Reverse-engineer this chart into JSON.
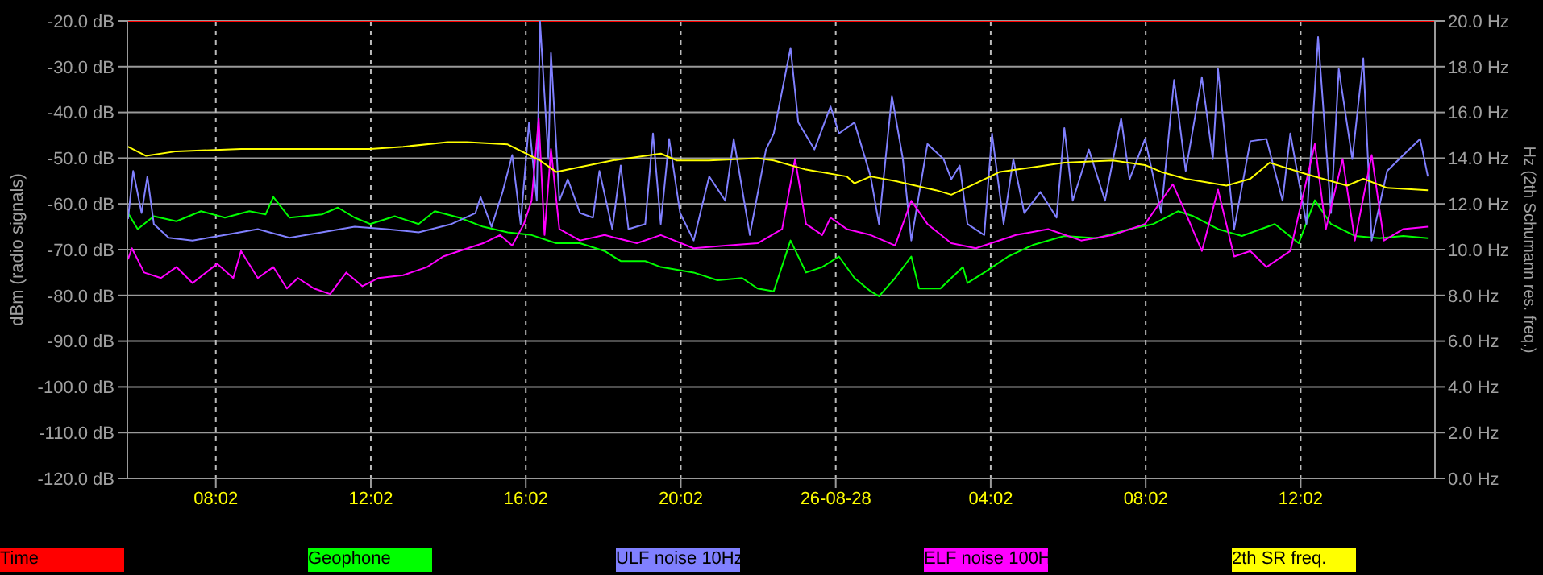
{
  "chart_data": {
    "type": "line",
    "ylabel": "dBm (radio signals)",
    "y2label": "Hz (2th Schumann res. freq.)",
    "xlim": [
      "--08-25T05:45",
      "--08-26T15:30"
    ],
    "xticks": [
      {
        "value": "--08-25T08:02",
        "label": "08:02"
      },
      {
        "value": "--08-25T12:02",
        "label": "12:02"
      },
      {
        "value": "--08-25T16:02",
        "label": "16:02"
      },
      {
        "value": "--08-25T20:02",
        "label": "20:02"
      },
      {
        "value": "--08-26T00:02",
        "label": "26-08-28"
      },
      {
        "value": "--08-26T04:02",
        "label": "04:02"
      },
      {
        "value": "--08-26T08:02",
        "label": "08:02"
      },
      {
        "value": "--08-26T12:02",
        "label": "12:02"
      }
    ],
    "ylim": [
      -120,
      -20
    ],
    "yticks": [
      {
        "value": -120,
        "label": "-120.0 dB"
      },
      {
        "value": -110,
        "label": "-110.0 dB"
      },
      {
        "value": -100,
        "label": "-100.0 dB"
      },
      {
        "value": -90,
        "label": "-90.0 dB"
      },
      {
        "value": -80,
        "label": "-80.0 dB"
      },
      {
        "value": -70,
        "label": "-70.0 dB"
      },
      {
        "value": -60,
        "label": "-60.0 dB"
      },
      {
        "value": -50,
        "label": "-50.0 dB"
      },
      {
        "value": -40,
        "label": "-40.0 dB"
      },
      {
        "value": -30,
        "label": "-30.0 dB"
      },
      {
        "value": -20,
        "label": "-20.0 dB"
      }
    ],
    "y2lim": [
      0,
      20
    ],
    "y2ticks": [
      {
        "value": 0,
        "label": "0.0 Hz"
      },
      {
        "value": 2,
        "label": "2.0 Hz"
      },
      {
        "value": 4,
        "label": "4.0 Hz"
      },
      {
        "value": 6,
        "label": "6.0 Hz"
      },
      {
        "value": 8,
        "label": "8.0 Hz"
      },
      {
        "value": 10,
        "label": "10.0 Hz"
      },
      {
        "value": 12,
        "label": "12.0 Hz"
      },
      {
        "value": 14,
        "label": "14.0 Hz"
      },
      {
        "value": 16,
        "label": "16.0 Hz"
      },
      {
        "value": 18,
        "label": "18.0 Hz"
      },
      {
        "value": 20,
        "label": "20.0 Hz"
      }
    ],
    "grid": true,
    "legend": "bottom",
    "series": [
      {
        "name": "Time",
        "color": "#ff0000",
        "x": [
          "--08-25T05:46",
          "--08-26T15:29"
        ],
        "values": [
          -20,
          -20
        ]
      },
      {
        "name": "Geophone",
        "color": "#00ff00",
        "x": [
          "--08-25T05:46",
          "--08-25T06:01",
          "--08-25T06:26",
          "--08-25T07:01",
          "--08-25T07:39",
          "--08-25T08:16",
          "--08-25T08:54",
          "--08-25T09:19",
          "--08-25T09:31",
          "--08-25T09:56",
          "--08-25T10:46",
          "--08-25T11:11",
          "--08-25T11:37",
          "--08-25T12:01",
          "--08-25T12:39",
          "--08-25T13:16",
          "--08-25T13:41",
          "--08-25T14:19",
          "--08-25T14:56",
          "--08-25T15:34",
          "--08-25T16:11",
          "--08-25T16:49",
          "--08-25T17:26",
          "--08-25T18:04",
          "--08-25T18:29",
          "--08-25T19:07",
          "--08-25T19:31",
          "--08-25T20:22",
          "--08-25T20:59",
          "--08-25T21:37",
          "--08-25T22:01",
          "--08-25T22:26",
          "--08-25T22:52",
          "--08-25T23:16",
          "--08-25T23:41",
          "--08-26T00:07",
          "--08-26T00:31",
          "--08-26T00:56",
          "--08-26T01:09",
          "--08-26T01:34",
          "--08-26T01:59",
          "--08-26T02:11",
          "--08-26T02:44",
          "--08-26T03:19",
          "--08-26T03:26",
          "--08-26T03:52",
          "--08-26T04:29",
          "--08-26T05:07",
          "--08-26T05:56",
          "--08-26T06:46",
          "--08-26T07:37",
          "--08-26T08:14",
          "--08-26T08:52",
          "--08-26T09:16",
          "--08-26T09:54",
          "--08-26T10:31",
          "--08-26T11:22",
          "--08-26T11:59",
          "--08-26T12:24",
          "--08-26T12:49",
          "--08-26T13:26",
          "--08-26T14:04",
          "--08-26T14:41",
          "--08-26T15:19"
        ],
        "values": [
          -62,
          -65.5,
          -62.7,
          -63.8,
          -61.6,
          -63,
          -61.6,
          -62.3,
          -58.5,
          -63,
          -62.3,
          -60.8,
          -63,
          -64.4,
          -62.7,
          -64.4,
          -61.6,
          -63,
          -65,
          -66.2,
          -66.8,
          -68.6,
          -68.6,
          -70.3,
          -72.5,
          -72.5,
          -73.8,
          -75,
          -76.7,
          -76.2,
          -78.5,
          -79.1,
          -68,
          -75,
          -73.8,
          -71.5,
          -76.2,
          -79.1,
          -80.2,
          -76.2,
          -71.5,
          -78.5,
          -78.5,
          -73.8,
          -77.3,
          -75,
          -71.5,
          -69,
          -67,
          -67.5,
          -65.5,
          -64.4,
          -61.6,
          -62.7,
          -65.5,
          -67,
          -64.4,
          -68.6,
          -59.2,
          -64.4,
          -67,
          -67.5,
          -67,
          -67.5
        ]
      },
      {
        "name": "ULF noise 10Hz",
        "color": "#8080ff",
        "x": [
          "--08-25T05:46",
          "--08-25T05:54",
          "--08-25T06:07",
          "--08-25T06:16",
          "--08-25T06:26",
          "--08-25T06:49",
          "--08-25T07:26",
          "--08-25T08:16",
          "--08-25T09:07",
          "--08-25T09:56",
          "--08-25T10:46",
          "--08-25T11:37",
          "--08-25T12:26",
          "--08-25T13:16",
          "--08-25T14:07",
          "--08-25T14:44",
          "--08-25T14:52",
          "--08-25T15:09",
          "--08-25T15:26",
          "--08-25T15:41",
          "--08-25T15:54",
          "--08-25T16:07",
          "--08-25T16:19",
          "--08-25T16:24",
          "--08-25T16:37",
          "--08-25T16:41",
          "--08-25T16:54",
          "--08-25T17:07",
          "--08-25T17:26",
          "--08-25T17:46",
          "--08-25T17:56",
          "--08-25T18:16",
          "--08-25T18:29",
          "--08-25T18:41",
          "--08-25T19:07",
          "--08-25T19:19",
          "--08-25T19:31",
          "--08-25T19:44",
          "--08-25T20:01",
          "--08-25T20:22",
          "--08-25T20:46",
          "--08-25T21:11",
          "--08-25T21:24",
          "--08-25T21:49",
          "--08-25T22:14",
          "--08-25T22:26",
          "--08-25T22:52",
          "--08-25T23:04",
          "--08-25T23:29",
          "--08-25T23:54",
          "--08-26T00:07",
          "--08-26T00:31",
          "--08-26T00:56",
          "--08-26T01:09",
          "--08-26T01:29",
          "--08-26T01:46",
          "--08-26T01:59",
          "--08-26T02:24",
          "--08-26T02:49",
          "--08-26T03:01",
          "--08-26T03:14",
          "--08-26T03:26",
          "--08-26T03:52",
          "--08-26T04:04",
          "--08-26T04:22",
          "--08-26T04:37",
          "--08-26T04:54",
          "--08-26T05:19",
          "--08-26T05:44",
          "--08-26T05:56",
          "--08-26T06:09",
          "--08-26T06:34",
          "--08-26T06:59",
          "--08-26T07:24",
          "--08-26T07:37",
          "--08-26T08:01",
          "--08-26T08:26",
          "--08-26T08:46",
          "--08-26T09:04",
          "--08-26T09:29",
          "--08-26T09:46",
          "--08-26T09:54",
          "--08-26T10:19",
          "--08-26T10:44",
          "--08-26T11:09",
          "--08-26T11:34",
          "--08-26T11:46",
          "--08-26T12:11",
          "--08-26T12:29",
          "--08-26T12:49",
          "--08-26T13:01",
          "--08-26T13:22",
          "--08-26T13:39",
          "--08-26T13:52",
          "--08-26T14:16",
          "--08-26T14:41",
          "--08-26T15:07",
          "--08-26T15:19"
        ],
        "values": [
          -63.3,
          -52.8,
          -62,
          -54,
          -64.4,
          -67.4,
          -68,
          -66.8,
          -65.5,
          -67.4,
          -66.2,
          -65,
          -65.5,
          -66.2,
          -64.4,
          -62,
          -58.5,
          -65,
          -57.4,
          -49.3,
          -64.4,
          -42.2,
          -59.3,
          -20,
          -50.2,
          -27,
          -59.3,
          -54.6,
          -62,
          -63,
          -52.8,
          -65.5,
          -51.6,
          -65.5,
          -64.4,
          -44.6,
          -64.4,
          -45.8,
          -62,
          -68,
          -54,
          -59.3,
          -45.8,
          -66.8,
          -48.1,
          -44.6,
          -25.9,
          -42.2,
          -48.1,
          -38.7,
          -44.6,
          -42.2,
          -54,
          -64.4,
          -36.4,
          -50.2,
          -68,
          -46.9,
          -50.2,
          -54.6,
          -51.6,
          -64.4,
          -66.8,
          -44.6,
          -64.4,
          -50.2,
          -62,
          -57.4,
          -63,
          -43.4,
          -59.3,
          -48.1,
          -59.3,
          -41.3,
          -54.6,
          -45.8,
          -62,
          -32.9,
          -52.8,
          -32.3,
          -50.2,
          -30.5,
          -65.5,
          -46.3,
          -45.8,
          -59.3,
          -44.6,
          -64.4,
          -23.5,
          -62,
          -30.5,
          -50.2,
          -28.2,
          -68,
          -52.8,
          -49.3,
          -45.8,
          -54
        ]
      },
      {
        "name": "ELF noise 100H",
        "color": "#ff00ff",
        "x": [
          "--08-25T05:46",
          "--08-25T05:52",
          "--08-25T06:11",
          "--08-25T06:37",
          "--08-25T07:01",
          "--08-25T07:26",
          "--08-25T08:04",
          "--08-25T08:29",
          "--08-25T08:41",
          "--08-25T09:07",
          "--08-25T09:31",
          "--08-25T09:52",
          "--08-25T10:09",
          "--08-25T10:34",
          "--08-25T10:59",
          "--08-25T11:24",
          "--08-25T11:49",
          "--08-25T12:14",
          "--08-25T12:52",
          "--08-25T13:29",
          "--08-25T13:54",
          "--08-25T14:19",
          "--08-25T14:56",
          "--08-25T15:22",
          "--08-25T15:41",
          "--08-25T15:59",
          "--08-25T16:11",
          "--08-25T16:22",
          "--08-25T16:31",
          "--08-25T16:41",
          "--08-25T16:54",
          "--08-25T17:26",
          "--08-25T18:04",
          "--08-25T18:54",
          "--08-25T19:31",
          "--08-25T20:22",
          "--08-25T21:11",
          "--08-25T22:01",
          "--08-25T22:39",
          "--08-25T22:59",
          "--08-25T23:16",
          "--08-25T23:41",
          "--08-25T23:54",
          "--08-26T00:19",
          "--08-26T00:56",
          "--08-26T01:34",
          "--08-26T01:59",
          "--08-26T02:24",
          "--08-26T03:01",
          "--08-26T03:39",
          "--08-26T04:41",
          "--08-26T05:31",
          "--08-26T06:22",
          "--08-26T07:11",
          "--08-26T08:01",
          "--08-26T08:44",
          "--08-26T09:04",
          "--08-26T09:29",
          "--08-26T09:54",
          "--08-26T10:19",
          "--08-26T10:44",
          "--08-26T11:09",
          "--08-26T11:46",
          "--08-26T12:24",
          "--08-26T12:41",
          "--08-26T13:07",
          "--08-26T13:26",
          "--08-26T13:52",
          "--08-26T14:11",
          "--08-26T14:41",
          "--08-26T15:19"
        ],
        "values": [
          -72.1,
          -69.7,
          -75,
          -76.2,
          -73.8,
          -77.3,
          -73.1,
          -76.2,
          -70.3,
          -76.2,
          -73.8,
          -78.5,
          -76.2,
          -78.5,
          -79.7,
          -75,
          -78,
          -76.2,
          -75.6,
          -73.8,
          -71.5,
          -70.3,
          -68.6,
          -66.8,
          -69.1,
          -64.4,
          -59.3,
          -41.3,
          -66.8,
          -48,
          -65.5,
          -68,
          -66.8,
          -68.6,
          -66.8,
          -69.7,
          -69.1,
          -68.6,
          -65.5,
          -50.2,
          -64.4,
          -66.8,
          -63,
          -65.5,
          -66.8,
          -69.1,
          -59.3,
          -64.4,
          -68.6,
          -69.7,
          -66.8,
          -65.5,
          -68,
          -66.8,
          -64.4,
          -55.7,
          -62,
          -70.3,
          -56.9,
          -71.5,
          -70.3,
          -73.8,
          -70.3,
          -46.9,
          -65.5,
          -50.2,
          -68,
          -49.3,
          -68,
          -65.5,
          -65
        ]
      },
      {
        "name": "2th SR freq.",
        "color": "#ffff00",
        "axis": "y2",
        "x": [
          "--08-25T05:46",
          "--08-25T06:14",
          "--08-25T07:01",
          "--08-25T08:41",
          "--08-25T12:01",
          "--08-25T12:52",
          "--08-25T14:01",
          "--08-25T14:31",
          "--08-25T15:34",
          "--08-25T16:24",
          "--08-25T16:49",
          "--08-25T18:16",
          "--08-25T19:31",
          "--08-25T19:56",
          "--08-25T20:46",
          "--08-25T22:01",
          "--08-25T22:26",
          "--08-25T23:16",
          "--08-26T00:19",
          "--08-26T00:31",
          "--08-26T00:56",
          "--08-26T01:34",
          "--08-26T02:37",
          "--08-26T03:01",
          "--08-26T03:39",
          "--08-26T04:16",
          "--08-26T05:07",
          "--08-26T05:56",
          "--08-26T07:11",
          "--08-26T08:01",
          "--08-26T08:26",
          "--08-26T09:04",
          "--08-26T10:07",
          "--08-26T10:44",
          "--08-26T11:14",
          "--08-26T12:11",
          "--08-26T13:14",
          "--08-26T13:39",
          "--08-26T14:16",
          "--08-26T15:19"
        ],
        "values": [
          14.5,
          14.1,
          14.3,
          14.4,
          14.4,
          14.5,
          14.7,
          14.7,
          14.6,
          13.9,
          13.4,
          13.9,
          14.2,
          13.9,
          13.9,
          14.0,
          13.9,
          13.5,
          13.2,
          12.9,
          13.2,
          13.0,
          12.6,
          12.4,
          12.9,
          13.4,
          13.6,
          13.8,
          13.9,
          13.7,
          13.4,
          13.1,
          12.8,
          13.1,
          13.8,
          13.3,
          12.8,
          13.1,
          12.7,
          12.6
        ]
      }
    ]
  }
}
